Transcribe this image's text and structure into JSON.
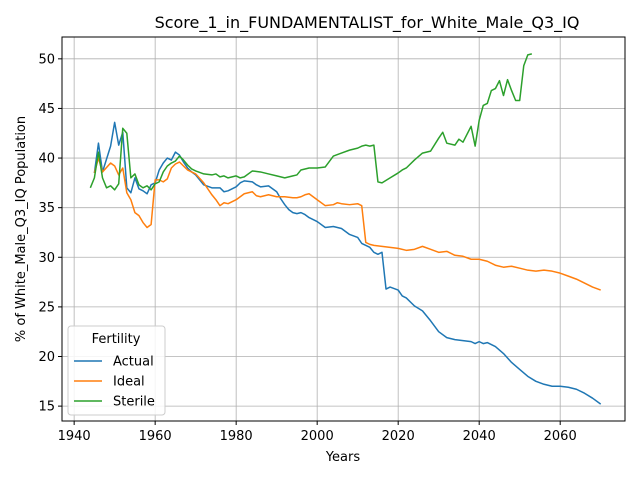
{
  "chart_data": {
    "type": "line",
    "title": "Score_1_in_FUNDAMENTALIST_for_White_Male_Q3_IQ",
    "xlabel": "Years",
    "ylabel": "% of White_Male_Q3_IQ Population",
    "xlim": [
      1937,
      2076
    ],
    "ylim": [
      13.5,
      52.2
    ],
    "xticks": [
      1940,
      1960,
      1980,
      2000,
      2020,
      2040,
      2060
    ],
    "yticks": [
      15,
      20,
      25,
      30,
      35,
      40,
      45,
      50
    ],
    "grid": true,
    "legend": {
      "title": "Fertility",
      "position": "lower-left"
    },
    "series": [
      {
        "name": "Actual",
        "color": "#1f77b4",
        "x": [
          1945,
          1946,
          1947,
          1949,
          1950,
          1951,
          1952,
          1953,
          1954,
          1955,
          1956,
          1957,
          1958,
          1959,
          1960,
          1961,
          1962,
          1963,
          1964,
          1965,
          1966,
          1967,
          1968,
          1969,
          1970,
          1972,
          1974,
          1976,
          1977,
          1978,
          1980,
          1981,
          1982,
          1984,
          1985,
          1986,
          1988,
          1990,
          1991,
          1992,
          1993,
          1994,
          1995,
          1996,
          1997,
          1998,
          2000,
          2002,
          2004,
          2006,
          2008,
          2010,
          2011,
          2013,
          2014,
          2015,
          2016,
          2017,
          2018,
          2020,
          2021,
          2022,
          2024,
          2026,
          2028,
          2030,
          2032,
          2034,
          2036,
          2038,
          2039,
          2040,
          2041,
          2042,
          2044,
          2046,
          2048,
          2050,
          2052,
          2054,
          2056,
          2058,
          2060,
          2062,
          2064,
          2066,
          2068,
          2070
        ],
        "y": [
          38.5,
          41.5,
          38.6,
          41.2,
          43.6,
          41.3,
          42.6,
          37.0,
          36.5,
          38.0,
          36.9,
          36.7,
          36.4,
          37.3,
          37.5,
          38.8,
          39.5,
          40.0,
          39.8,
          40.6,
          40.3,
          39.6,
          39.0,
          38.6,
          38.3,
          37.3,
          37.0,
          37.0,
          36.6,
          36.7,
          37.1,
          37.5,
          37.7,
          37.6,
          37.3,
          37.1,
          37.2,
          36.6,
          35.9,
          35.3,
          34.8,
          34.5,
          34.4,
          34.5,
          34.3,
          34.0,
          33.6,
          33.0,
          33.1,
          32.9,
          32.3,
          32.0,
          31.4,
          31.0,
          30.5,
          30.3,
          30.5,
          26.8,
          27.0,
          26.7,
          26.1,
          25.9,
          25.1,
          24.6,
          23.6,
          22.5,
          21.9,
          21.7,
          21.6,
          21.5,
          21.3,
          21.5,
          21.3,
          21.4,
          21.0,
          20.3,
          19.4,
          18.7,
          18.0,
          17.5,
          17.2,
          17.0,
          17.0,
          16.9,
          16.7,
          16.3,
          15.8,
          15.2
        ]
      },
      {
        "name": "Ideal",
        "color": "#ff7f0e",
        "x": [
          1945,
          1946,
          1947,
          1949,
          1950,
          1951,
          1952,
          1953,
          1954,
          1955,
          1956,
          1957,
          1958,
          1959,
          1960,
          1961,
          1962,
          1963,
          1964,
          1965,
          1966,
          1967,
          1968,
          1969,
          1970,
          1972,
          1974,
          1975,
          1976,
          1977,
          1978,
          1980,
          1981,
          1982,
          1984,
          1985,
          1986,
          1988,
          1990,
          1992,
          1994,
          1995,
          1996,
          1997,
          1998,
          2000,
          2002,
          2004,
          2005,
          2006,
          2008,
          2010,
          2011,
          2012,
          2013,
          2014,
          2016,
          2018,
          2020,
          2022,
          2024,
          2026,
          2028,
          2030,
          2032,
          2034,
          2036,
          2038,
          2040,
          2042,
          2044,
          2046,
          2048,
          2050,
          2052,
          2054,
          2056,
          2058,
          2060,
          2062,
          2064,
          2066,
          2068,
          2070
        ],
        "y": [
          38.5,
          40.0,
          38.6,
          39.5,
          39.2,
          38.3,
          39.0,
          36.5,
          35.8,
          34.5,
          34.2,
          33.5,
          33.0,
          33.3,
          37.8,
          37.8,
          37.6,
          37.9,
          39.0,
          39.4,
          39.6,
          39.2,
          38.8,
          38.6,
          38.4,
          37.5,
          36.3,
          35.8,
          35.2,
          35.5,
          35.4,
          35.8,
          36.1,
          36.4,
          36.6,
          36.2,
          36.1,
          36.3,
          36.1,
          36.1,
          36.0,
          36.0,
          36.1,
          36.3,
          36.4,
          35.8,
          35.2,
          35.3,
          35.5,
          35.4,
          35.3,
          35.4,
          35.2,
          31.5,
          31.3,
          31.2,
          31.1,
          31.0,
          30.9,
          30.7,
          30.8,
          31.1,
          30.8,
          30.5,
          30.6,
          30.2,
          30.1,
          29.8,
          29.8,
          29.6,
          29.2,
          29.0,
          29.1,
          28.9,
          28.7,
          28.6,
          28.7,
          28.6,
          28.4,
          28.1,
          27.8,
          27.4,
          27.0,
          26.7
        ]
      },
      {
        "name": "Sterile",
        "color": "#2ca02c",
        "x": [
          1944,
          1945,
          1946,
          1947,
          1948,
          1949,
          1950,
          1951,
          1952,
          1953,
          1954,
          1955,
          1956,
          1957,
          1958,
          1959,
          1960,
          1961,
          1962,
          1963,
          1964,
          1965,
          1966,
          1967,
          1968,
          1969,
          1970,
          1972,
          1974,
          1975,
          1976,
          1977,
          1978,
          1980,
          1981,
          1982,
          1984,
          1986,
          1987,
          1988,
          1990,
          1992,
          1994,
          1995,
          1996,
          1998,
          2000,
          2002,
          2004,
          2006,
          2008,
          2010,
          2011,
          2012,
          2013,
          2014,
          2015,
          2016,
          2018,
          2020,
          2021,
          2022,
          2024,
          2026,
          2028,
          2030,
          2031,
          2032,
          2034,
          2035,
          2036,
          2038,
          2039,
          2040,
          2041,
          2042,
          2043,
          2044,
          2045,
          2046,
          2047,
          2048,
          2049,
          2050,
          2051,
          2052,
          2053
        ],
        "y": [
          37.0,
          38.0,
          40.6,
          38.0,
          37.0,
          37.2,
          36.8,
          37.4,
          43.0,
          42.5,
          38.0,
          38.4,
          37.3,
          37.0,
          37.2,
          36.8,
          37.4,
          37.6,
          38.6,
          39.2,
          39.5,
          39.7,
          40.2,
          39.8,
          39.3,
          38.9,
          38.7,
          38.4,
          38.3,
          38.4,
          38.1,
          38.2,
          38.0,
          38.2,
          38.0,
          38.1,
          38.7,
          38.6,
          38.5,
          38.4,
          38.2,
          38.0,
          38.2,
          38.3,
          38.8,
          39.0,
          39.0,
          39.1,
          40.2,
          40.5,
          40.8,
          41.0,
          41.2,
          41.3,
          41.2,
          41.3,
          37.6,
          37.5,
          38.0,
          38.5,
          38.8,
          39.0,
          39.8,
          40.5,
          40.7,
          42.0,
          42.6,
          41.5,
          41.3,
          41.9,
          41.6,
          43.2,
          41.2,
          43.8,
          45.3,
          45.5,
          46.8,
          47.0,
          47.8,
          46.3,
          47.9,
          46.8,
          45.8,
          45.8,
          49.3,
          50.4,
          50.5
        ]
      }
    ]
  }
}
